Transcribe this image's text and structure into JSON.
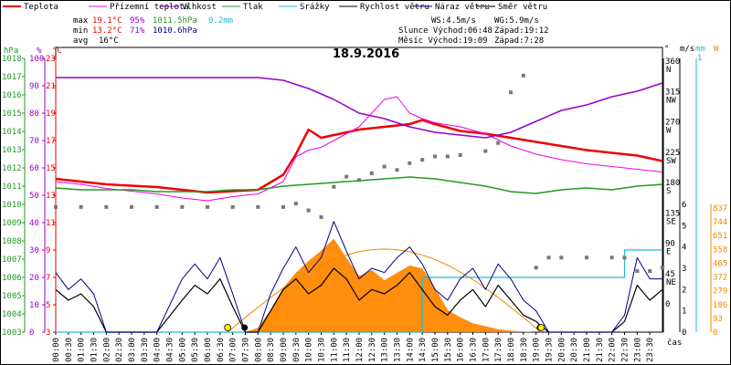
{
  "legend": [
    {
      "label": "Teplota",
      "color": "#ee0000"
    },
    {
      "label": "Přízemní teplota",
      "color": "#ee00ee"
    },
    {
      "label": "Vlhkost",
      "color": "#9900cc"
    },
    {
      "label": "Tlak",
      "color": "#229922"
    },
    {
      "label": "Srážky",
      "color": "#22bbcc"
    },
    {
      "label": "Rychlost větru",
      "color": "#000000"
    },
    {
      "label": "Náraz větru",
      "color": "#000088"
    },
    {
      "label": "Směr větru",
      "color": "#777777"
    }
  ],
  "stats": {
    "max": {
      "label": "max",
      "temp": "19.1°C",
      "hum": "95%",
      "press": "1011.5hPa",
      "rain": "0.2mm"
    },
    "min": {
      "label": "min",
      "temp": "13.2°C",
      "hum": "71%",
      "press": "1010.6hPa"
    },
    "avg": {
      "label": "avg",
      "temp": "16°C"
    }
  },
  "info": {
    "ws": "WS:4.5m/s",
    "wg": "WG:5.9m/s",
    "sun": "Slunce Východ:06:48",
    "sun_set": "Západ:19:12",
    "moon": "Měsíc  Východ:19:09",
    "moon_set": "Západ:7:28"
  },
  "chart_data": {
    "type": "line",
    "title": "18.9.2016",
    "xlabel": "čas",
    "x_ticks": [
      "00:00",
      "00:30",
      "01:00",
      "01:30",
      "02:00",
      "02:30",
      "03:00",
      "03:30",
      "04:00",
      "04:30",
      "05:00",
      "05:30",
      "06:00",
      "06:30",
      "07:00",
      "07:30",
      "08:00",
      "08:30",
      "09:00",
      "09:30",
      "10:00",
      "10:30",
      "11:00",
      "11:30",
      "12:00",
      "12:30",
      "13:00",
      "13:30",
      "14:00",
      "14:30",
      "15:00",
      "15:30",
      "16:00",
      "16:30",
      "17:00",
      "17:30",
      "18:00",
      "18:30",
      "19:00",
      "19:30",
      "20:00",
      "20:30",
      "21:00",
      "21:30",
      "22:00",
      "22:30",
      "23:00",
      "23:30"
    ],
    "axes": {
      "hpa": {
        "label": "hPa",
        "range": [
          1003,
          1018
        ],
        "ticks": [
          1003,
          1004,
          1005,
          1006,
          1007,
          1008,
          1009,
          1010,
          1011,
          1012,
          1013,
          1014,
          1015,
          1016,
          1017,
          1018
        ]
      },
      "pct": {
        "label": "%",
        "range": [
          0,
          100
        ],
        "ticks": [
          0,
          10,
          20,
          30,
          40,
          50,
          60,
          70,
          80,
          90,
          100
        ]
      },
      "temp": {
        "label": "°C",
        "range": [
          3,
          23
        ],
        "ticks": [
          3,
          5,
          7,
          9,
          11,
          13,
          15,
          17,
          19,
          21,
          23
        ]
      },
      "dir": {
        "label": "°",
        "ticks": [
          {
            "v": 0,
            "t": "0"
          },
          {
            "v": 45,
            "t": "45 NE"
          },
          {
            "v": 90,
            "t": "90 E"
          },
          {
            "v": 135,
            "t": "135 SE"
          },
          {
            "v": 180,
            "t": "180 S"
          },
          {
            "v": 225,
            "t": "225 SW"
          },
          {
            "v": 270,
            "t": "270 W"
          },
          {
            "v": 315,
            "t": "315 NW"
          },
          {
            "v": 360,
            "t": "360 N"
          }
        ]
      },
      "ms": {
        "label": "m/s",
        "range": [
          0,
          6
        ],
        "ticks": [
          0,
          1,
          2,
          3,
          4,
          5,
          6
        ]
      },
      "mm": {
        "label": "mm",
        "top_tick": "1"
      },
      "w": {
        "label": "W",
        "range": [
          0,
          837
        ],
        "ticks": [
          0,
          93,
          186,
          279,
          372,
          465,
          558,
          651,
          744,
          837
        ]
      }
    },
    "series": [
      {
        "name": "Teplota",
        "color": "#ee0000",
        "x": [
          0,
          1,
          2,
          3,
          4,
          5,
          6,
          7,
          8,
          9,
          9.5,
          10,
          10.5,
          11,
          11.5,
          12,
          13,
          14,
          14.5,
          15,
          16,
          17,
          18,
          19,
          20,
          21,
          22,
          23,
          24
        ],
        "y": [
          14.2,
          14.0,
          13.8,
          13.7,
          13.6,
          13.4,
          13.2,
          13.3,
          13.4,
          14.5,
          16.0,
          17.8,
          17.2,
          17.4,
          17.6,
          17.8,
          18.0,
          18.2,
          18.5,
          18.2,
          17.7,
          17.5,
          17.2,
          16.9,
          16.6,
          16.3,
          16.1,
          15.9,
          15.5
        ]
      },
      {
        "name": "Přízemní teplota",
        "color": "#ee00ee",
        "x": [
          0,
          1,
          2,
          3,
          4,
          5,
          6,
          7,
          8,
          9,
          9.5,
          10,
          10.5,
          11,
          11.5,
          12,
          12.5,
          13,
          13.5,
          14,
          14.5,
          15,
          16,
          17,
          18,
          19,
          20,
          21,
          22,
          23,
          24
        ],
        "y": [
          14.0,
          13.8,
          13.5,
          13.3,
          13.1,
          12.8,
          12.6,
          12.9,
          13.1,
          14.0,
          15.8,
          16.3,
          16.5,
          17.0,
          17.5,
          18.0,
          19.0,
          20.0,
          20.2,
          19.0,
          18.6,
          18.3,
          18.0,
          17.5,
          16.6,
          16.0,
          15.6,
          15.3,
          15.1,
          14.9,
          14.7
        ]
      },
      {
        "name": "Vlhkost",
        "color": "#9900cc",
        "x": [
          0,
          1,
          2,
          3,
          4,
          5,
          6,
          7,
          8,
          9,
          10,
          11,
          12,
          13,
          14,
          15,
          16,
          17,
          18,
          19,
          20,
          21,
          22,
          23,
          24
        ],
        "y": [
          93,
          93,
          93,
          93,
          93,
          93,
          93,
          93,
          93,
          92,
          89,
          85,
          80,
          78,
          75,
          73,
          72,
          71,
          73,
          77,
          81,
          83,
          86,
          88,
          91
        ]
      },
      {
        "name": "Tlak",
        "color": "#229922",
        "x": [
          0,
          1,
          2,
          3,
          4,
          5,
          6,
          7,
          8,
          9,
          10,
          11,
          12,
          13,
          14,
          15,
          16,
          17,
          18,
          19,
          20,
          21,
          22,
          23,
          24
        ],
        "y": [
          1010.9,
          1010.8,
          1010.8,
          1010.8,
          1010.7,
          1010.7,
          1010.7,
          1010.8,
          1010.8,
          1011.0,
          1011.1,
          1011.2,
          1011.3,
          1011.4,
          1011.5,
          1011.4,
          1011.2,
          1011.0,
          1010.7,
          1010.6,
          1010.8,
          1010.9,
          1010.8,
          1011.0,
          1011.1
        ]
      },
      {
        "name": "Srážky",
        "color": "#22bbcc",
        "x": [
          0,
          14.5,
          14.5,
          22.5,
          22.5,
          24
        ],
        "y": [
          0,
          0,
          0.2,
          0.2,
          0.3,
          0.3
        ]
      },
      {
        "name": "Rychlost větru",
        "color": "#000000",
        "x": [
          0,
          0.5,
          1,
          1.5,
          2,
          3,
          4,
          5,
          5.5,
          6,
          6.5,
          7,
          7.5,
          8,
          8.5,
          9,
          9.5,
          10,
          10.5,
          11,
          11.5,
          12,
          12.5,
          13,
          13.5,
          14,
          14.5,
          15,
          15.5,
          16,
          16.5,
          17,
          17.5,
          18,
          18.5,
          19,
          19.5,
          20,
          21,
          22,
          22.5,
          23,
          23.5,
          24
        ],
        "y": [
          2.0,
          1.5,
          1.8,
          1.2,
          0,
          0,
          0,
          1.5,
          2.2,
          1.8,
          2.5,
          1.2,
          0,
          0,
          1.0,
          2.0,
          2.5,
          1.8,
          2.2,
          3.0,
          2.5,
          1.5,
          2.0,
          1.8,
          2.2,
          2.8,
          2.0,
          1.2,
          0.8,
          1.5,
          2.0,
          1.2,
          2.2,
          1.5,
          0.8,
          0.5,
          0,
          0,
          0,
          0,
          0.5,
          2.2,
          1.5,
          2.0
        ]
      },
      {
        "name": "Náraz větru",
        "color": "#000088",
        "x": [
          0,
          0.5,
          1,
          1.5,
          2,
          3,
          4,
          5,
          5.5,
          6,
          6.5,
          7,
          7.5,
          8,
          8.5,
          9,
          9.5,
          10,
          10.5,
          11,
          11.5,
          12,
          12.5,
          13,
          13.5,
          14,
          14.5,
          15,
          15.5,
          16,
          16.5,
          17,
          17.5,
          18,
          18.5,
          19,
          19.5,
          20,
          21,
          22,
          22.5,
          23,
          23.5,
          24
        ],
        "y": [
          2.8,
          2.0,
          2.5,
          1.8,
          0,
          0,
          0,
          2.5,
          3.2,
          2.5,
          3.5,
          1.8,
          0,
          0,
          1.8,
          3.0,
          4.0,
          2.8,
          3.5,
          5.2,
          3.8,
          2.5,
          3.0,
          2.8,
          3.5,
          4.0,
          3.2,
          2.0,
          1.5,
          2.5,
          3.0,
          2.0,
          3.2,
          2.5,
          1.5,
          1.0,
          0,
          0,
          0,
          0,
          0.8,
          3.5,
          2.5,
          2.5
        ]
      },
      {
        "name": "Směr větru",
        "color": "#777777",
        "x": [
          0,
          1,
          2,
          3,
          4,
          5,
          6,
          7,
          8,
          9,
          9.5,
          10,
          10.5,
          11,
          11.5,
          12,
          12.5,
          13,
          13.5,
          14,
          14.5,
          15,
          15.5,
          16,
          17,
          17.5,
          18,
          18.5,
          19,
          19.5,
          20,
          21,
          22,
          22.5,
          23,
          23.5,
          24
        ],
        "y": [
          145,
          145,
          145,
          145,
          145,
          145,
          145,
          145,
          145,
          145,
          150,
          140,
          130,
          175,
          190,
          185,
          195,
          205,
          200,
          210,
          215,
          220,
          220,
          222,
          228,
          240,
          315,
          340,
          55,
          70,
          70,
          70,
          70,
          70,
          50,
          50,
          55
        ]
      }
    ],
    "radiation": {
      "name": "radiation",
      "color": "#ff8800",
      "x": [
        7.5,
        8,
        8.5,
        9,
        9.5,
        10,
        10.5,
        11,
        11.5,
        12,
        12.5,
        13,
        13.5,
        14,
        14.5,
        15,
        15.5,
        16,
        16.5,
        17,
        17.5,
        18,
        18.5,
        19
      ],
      "y": [
        0,
        30,
        150,
        300,
        400,
        480,
        550,
        630,
        500,
        380,
        420,
        350,
        400,
        450,
        430,
        300,
        150,
        100,
        60,
        40,
        20,
        10,
        5,
        0
      ]
    },
    "sun_curve": {
      "name": "clear-sky radiation",
      "color": "#ee8800",
      "peak": 560,
      "start": 6.8,
      "end": 19.2
    },
    "markers": [
      {
        "name": "sunrise",
        "x": 6.8,
        "symbol": "sun"
      },
      {
        "name": "moonset",
        "x": 7.47,
        "symbol": "moon"
      },
      {
        "name": "moonrise",
        "x": 19.15,
        "symbol": "moon"
      },
      {
        "name": "sunset",
        "x": 19.2,
        "symbol": "sun"
      }
    ]
  }
}
